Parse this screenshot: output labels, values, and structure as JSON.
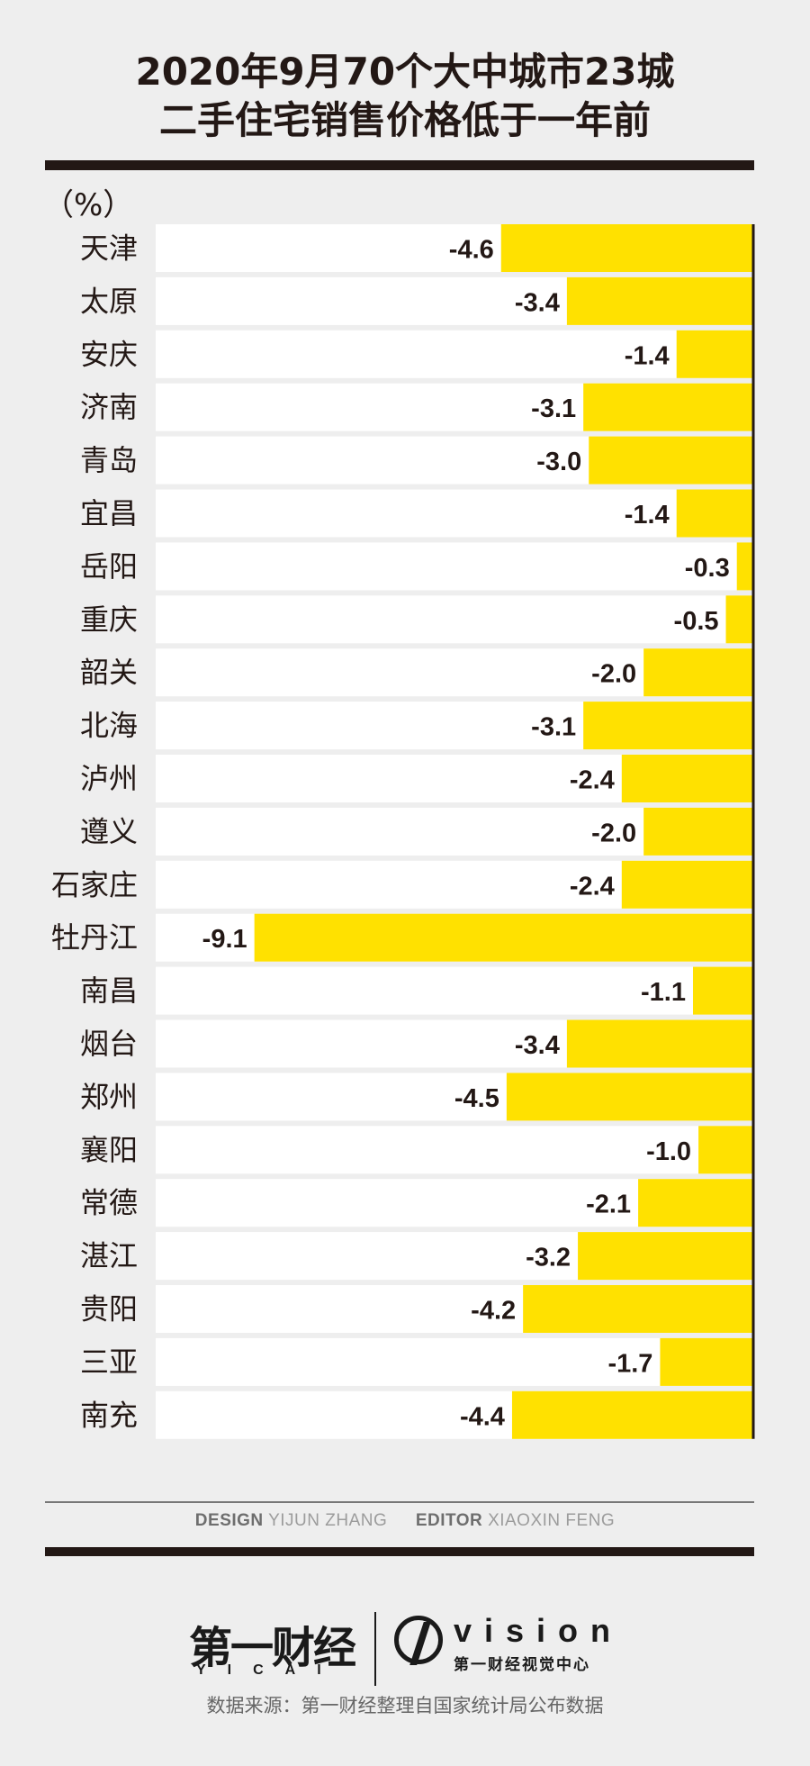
{
  "title_line1": "2020年9月70个大中城市23城",
  "title_line2": "二手住宅销售价格低于一年前",
  "unit": "（%）",
  "credits": {
    "design_label": "DESIGN",
    "design_name": "YIJUN ZHANG",
    "editor_label": "EDITOR",
    "editor_name": "XIAOXIN FENG"
  },
  "logo": {
    "yicai_cn": "第一财经",
    "yicai_en": "YICAI",
    "vision_en": "vision",
    "vision_cn": "第一财经视觉中心"
  },
  "source": "数据来源：第一财经整理自国家统计局公布数据",
  "colors": {
    "bar": "#ffe100",
    "row": "#ffffff",
    "ink": "#231815",
    "background": "#eeeeee"
  },
  "chart_data": {
    "type": "bar",
    "orientation": "horizontal",
    "categories": [
      "天津",
      "太原",
      "安庆",
      "济南",
      "青岛",
      "宜昌",
      "岳阳",
      "重庆",
      "韶关",
      "北海",
      "泸州",
      "遵义",
      "石家庄",
      "牡丹江",
      "南昌",
      "烟台",
      "郑州",
      "襄阳",
      "常德",
      "湛江",
      "贵阳",
      "三亚",
      "南充"
    ],
    "values": [
      -4.6,
      -3.4,
      -1.4,
      -3.1,
      -3.0,
      -1.4,
      -0.3,
      -0.5,
      -2.0,
      -3.1,
      -2.4,
      -2.0,
      -2.4,
      -9.1,
      -1.1,
      -3.4,
      -4.5,
      -1.0,
      -2.1,
      -3.2,
      -4.2,
      -1.7,
      -4.4
    ],
    "labels": [
      "-4.6",
      "-3.4",
      "-1.4",
      "-3.1",
      "-3.0",
      "-1.4",
      "-0.3",
      "-0.5",
      "-2.0",
      "-3.1",
      "-2.4",
      "-2.0",
      "-2.4",
      "-9.1",
      "-1.1",
      "-3.4",
      "-4.5",
      "-1.0",
      "-2.1",
      "-3.2",
      "-4.2",
      "-1.7",
      "-4.4"
    ],
    "xlim": [
      -10.9,
      0
    ],
    "grid": false
  }
}
